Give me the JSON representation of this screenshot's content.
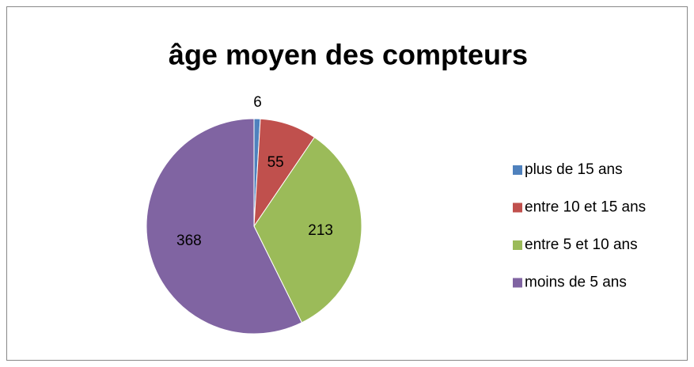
{
  "chart_data": {
    "type": "pie",
    "title": "âge moyen des compteurs",
    "categories": [
      "plus de 15 ans",
      "entre 10 et 15 ans",
      "entre 5 et 10 ans",
      "moins de 5 ans"
    ],
    "values": [
      6,
      55,
      213,
      368
    ],
    "colors": [
      "#4f81bd",
      "#c0504d",
      "#9bbb59",
      "#8064a2"
    ],
    "legend": "right"
  }
}
